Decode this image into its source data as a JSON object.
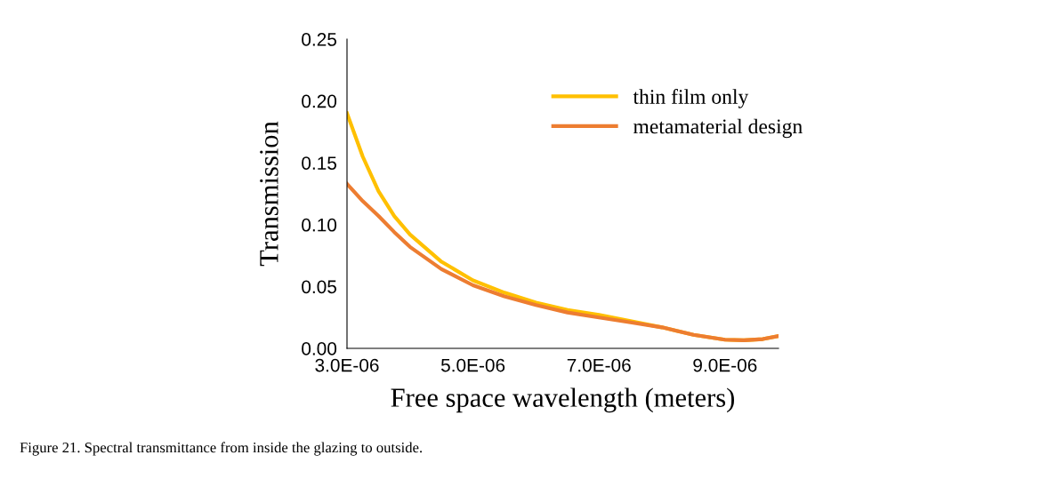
{
  "chart_data": {
    "type": "line",
    "xlabel": "Free space wavelength (meters)",
    "ylabel": "Transmission",
    "annotations": [
      "Figure 21. Spectral transmittance from inside the glazing to outside."
    ],
    "xlim": [
      3e-06,
      9.85e-06
    ],
    "xticks": [
      {
        "value": 3e-06,
        "label": "3.0E-06"
      },
      {
        "value": 5e-06,
        "label": "5.0E-06"
      },
      {
        "value": 7e-06,
        "label": "7.0E-06"
      },
      {
        "value": 9e-06,
        "label": "9.0E-06"
      }
    ],
    "ylim": [
      0,
      0.25
    ],
    "yticks": [
      {
        "value": 0,
        "label": "0.00"
      },
      {
        "value": 0.05,
        "label": "0.05"
      },
      {
        "value": 0.1,
        "label": "0.10"
      },
      {
        "value": 0.15,
        "label": "0.15"
      },
      {
        "value": 0.2,
        "label": "0.20"
      },
      {
        "value": 0.25,
        "label": "0.25"
      }
    ],
    "x": [
      3e-06,
      3.25e-06,
      3.5e-06,
      3.75e-06,
      4e-06,
      4.5e-06,
      5e-06,
      5.5e-06,
      6e-06,
      6.5e-06,
      7e-06,
      7.5e-06,
      8e-06,
      8.5e-06,
      9e-06,
      9.3e-06,
      9.6e-06,
      9.85e-06
    ],
    "series": [
      {
        "name": "thin film only",
        "color": "#ffc000",
        "values": [
          0.19,
          0.155,
          0.127,
          0.107,
          0.092,
          0.07,
          0.055,
          0.045,
          0.037,
          0.031,
          0.027,
          0.022,
          0.017,
          0.011,
          0.007,
          0.0065,
          0.0075,
          0.01
        ]
      },
      {
        "name": "metamaterial design",
        "color": "#ed7d31",
        "values": [
          0.133,
          0.119,
          0.107,
          0.094,
          0.082,
          0.064,
          0.051,
          0.042,
          0.035,
          0.029,
          0.025,
          0.021,
          0.017,
          0.011,
          0.007,
          0.0065,
          0.0075,
          0.01
        ]
      }
    ],
    "grid": false,
    "legend": "top right",
    "marker": "none",
    "line_style": "solid"
  }
}
